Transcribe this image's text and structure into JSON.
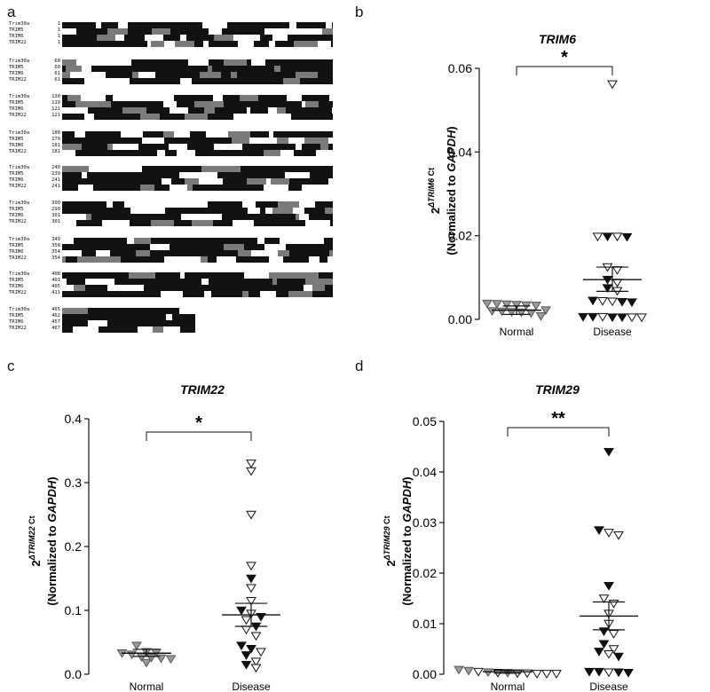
{
  "panels": {
    "a": "a",
    "b": "b",
    "c": "c",
    "d": "d"
  },
  "alignment": {
    "sequences": [
      "Trim30a",
      "TRIM5",
      "TRIM6",
      "TRIM22"
    ],
    "blocks": [
      {
        "starts": [
          "1",
          "1",
          "1",
          "1"
        ]
      },
      {
        "starts": [
          "60",
          "60",
          "61",
          "61"
        ]
      },
      {
        "starts": [
          "130",
          "119",
          "121",
          "121"
        ]
      },
      {
        "starts": [
          "180",
          "179",
          "181",
          "181"
        ]
      },
      {
        "starts": [
          "240",
          "239",
          "241",
          "241"
        ]
      },
      {
        "starts": [
          "300",
          "299",
          "301",
          "301"
        ]
      },
      {
        "starts": [
          "349",
          "358",
          "354",
          "354"
        ]
      },
      {
        "starts": [
          "408",
          "403",
          "405",
          "411"
        ]
      },
      {
        "starts": [
          "465",
          "462",
          "457",
          "467"
        ]
      }
    ]
  },
  "chart_data": [
    {
      "type": "scatter",
      "title": "TRIM6",
      "ylabel_main": "2",
      "ylabel_sup_prefix": "ΔTRIM6",
      "ylabel_sup_suffix": " Ct",
      "ylabel_line2_pre": "(Normalized to ",
      "ylabel_line2_gene": "GAPDH",
      "ylabel_line2_post": ")",
      "categories": [
        "Normal",
        "Disease"
      ],
      "ylim": [
        0,
        0.06
      ],
      "yticks": [
        "0.00",
        "0.02",
        "0.04",
        "0.06"
      ],
      "significance": "*",
      "groups": [
        {
          "name": "Normal",
          "mean": 0.0022,
          "sem": [
            0.0012,
            0.0032
          ],
          "points": [
            {
              "y": 0.0035,
              "style": "gray"
            },
            {
              "y": 0.0038,
              "style": "gray"
            },
            {
              "y": 0.0037,
              "style": "gray"
            },
            {
              "y": 0.0036,
              "style": "gray"
            },
            {
              "y": 0.0034,
              "style": "gray"
            },
            {
              "y": 0.0033,
              "style": "gray"
            },
            {
              "y": 0.0022,
              "style": "gray"
            },
            {
              "y": 0.002,
              "style": "gray"
            },
            {
              "y": 0.0019,
              "style": "gray"
            },
            {
              "y": 0.0018,
              "style": "gray"
            },
            {
              "y": 0.0017,
              "style": "gray"
            },
            {
              "y": 0.0015,
              "style": "gray"
            },
            {
              "y": 0.0008,
              "style": "gray"
            }
          ]
        },
        {
          "name": "Disease",
          "mean": 0.0095,
          "sem": [
            0.0067,
            0.0125
          ],
          "points": [
            {
              "y": 0.0562,
              "style": "open"
            },
            {
              "y": 0.0198,
              "style": "open"
            },
            {
              "y": 0.0198,
              "style": "filled"
            },
            {
              "y": 0.0197,
              "style": "filled"
            },
            {
              "y": 0.0198,
              "style": "open"
            },
            {
              "y": 0.0125,
              "style": "open"
            },
            {
              "y": 0.0118,
              "style": "open"
            },
            {
              "y": 0.0095,
              "style": "filled"
            },
            {
              "y": 0.0088,
              "style": "open"
            },
            {
              "y": 0.0075,
              "style": "filled"
            },
            {
              "y": 0.0068,
              "style": "open"
            },
            {
              "y": 0.0045,
              "style": "filled"
            },
            {
              "y": 0.0044,
              "style": "open"
            },
            {
              "y": 0.0042,
              "style": "filled"
            },
            {
              "y": 0.0043,
              "style": "open"
            },
            {
              "y": 0.0041,
              "style": "filled"
            },
            {
              "y": 0.0006,
              "style": "filled"
            },
            {
              "y": 0.0005,
              "style": "filled"
            },
            {
              "y": 0.0005,
              "style": "filled"
            },
            {
              "y": 0.0006,
              "style": "filled"
            },
            {
              "y": 0.0005,
              "style": "open"
            },
            {
              "y": 0.0006,
              "style": "open"
            },
            {
              "y": 0.0005,
              "style": "open"
            }
          ]
        }
      ]
    },
    {
      "type": "scatter",
      "title": "TRIM22",
      "ylabel_main": "2",
      "ylabel_sup_prefix": "ΔTRIM22",
      "ylabel_sup_suffix": " Ct",
      "ylabel_line2_pre": "(Normalized to ",
      "ylabel_line2_gene": "GAPDH",
      "ylabel_line2_post": ")",
      "categories": [
        "Normal",
        "Disease"
      ],
      "ylim": [
        0,
        0.4
      ],
      "yticks": [
        "0.0",
        "0.1",
        "0.2",
        "0.3",
        "0.4"
      ],
      "significance": "*",
      "groups": [
        {
          "name": "Normal",
          "mean": 0.033,
          "sem": [
            0.028,
            0.039
          ],
          "points": [
            {
              "y": 0.045,
              "style": "gray"
            },
            {
              "y": 0.035,
              "style": "gray"
            },
            {
              "y": 0.034,
              "style": "gray"
            },
            {
              "y": 0.033,
              "style": "gray"
            },
            {
              "y": 0.031,
              "style": "gray"
            },
            {
              "y": 0.027,
              "style": "gray"
            },
            {
              "y": 0.025,
              "style": "gray"
            },
            {
              "y": 0.026,
              "style": "gray"
            },
            {
              "y": 0.024,
              "style": "gray"
            },
            {
              "y": 0.018,
              "style": "gray"
            }
          ]
        },
        {
          "name": "Disease",
          "mean": 0.093,
          "sem": [
            0.075,
            0.111
          ],
          "points": [
            {
              "y": 0.33,
              "style": "open"
            },
            {
              "y": 0.318,
              "style": "open"
            },
            {
              "y": 0.25,
              "style": "open"
            },
            {
              "y": 0.17,
              "style": "open"
            },
            {
              "y": 0.15,
              "style": "filled"
            },
            {
              "y": 0.135,
              "style": "open"
            },
            {
              "y": 0.115,
              "style": "open"
            },
            {
              "y": 0.1,
              "style": "filled"
            },
            {
              "y": 0.095,
              "style": "open"
            },
            {
              "y": 0.09,
              "style": "filled"
            },
            {
              "y": 0.085,
              "style": "open"
            },
            {
              "y": 0.075,
              "style": "filled"
            },
            {
              "y": 0.07,
              "style": "open"
            },
            {
              "y": 0.06,
              "style": "open"
            },
            {
              "y": 0.045,
              "style": "filled"
            },
            {
              "y": 0.04,
              "style": "filled"
            },
            {
              "y": 0.035,
              "style": "open"
            },
            {
              "y": 0.03,
              "style": "filled"
            },
            {
              "y": 0.02,
              "style": "open"
            },
            {
              "y": 0.015,
              "style": "filled"
            },
            {
              "y": 0.01,
              "style": "open"
            }
          ]
        }
      ]
    },
    {
      "type": "scatter",
      "title": "TRIM29",
      "ylabel_main": "2",
      "ylabel_sup_prefix": "ΔTRIM29",
      "ylabel_sup_suffix": " Ct",
      "ylabel_line2_pre": "(Normalized to ",
      "ylabel_line2_gene": "GAPDH",
      "ylabel_line2_post": ")",
      "categories": [
        "Normal",
        "Disease"
      ],
      "ylim": [
        0,
        0.05
      ],
      "yticks": [
        "0.00",
        "0.01",
        "0.02",
        "0.03",
        "0.04",
        "0.05"
      ],
      "significance": "**",
      "groups": [
        {
          "name": "Normal",
          "mean": 0.0005,
          "sem": [
            0.0002,
            0.0008
          ],
          "points": [
            {
              "y": 0.0009,
              "style": "gray"
            },
            {
              "y": 0.0007,
              "style": "gray"
            },
            {
              "y": 0.0005,
              "style": "open"
            },
            {
              "y": 0.0004,
              "style": "gray"
            },
            {
              "y": 0.0003,
              "style": "open"
            },
            {
              "y": 0.0003,
              "style": "gray"
            },
            {
              "y": 0.0002,
              "style": "open"
            },
            {
              "y": 0.0002,
              "style": "open"
            },
            {
              "y": 0.0001,
              "style": "open"
            },
            {
              "y": 0.0001,
              "style": "open"
            },
            {
              "y": 0.0001,
              "style": "open"
            }
          ]
        },
        {
          "name": "Disease",
          "mean": 0.0115,
          "sem": [
            0.0088,
            0.0143
          ],
          "points": [
            {
              "y": 0.044,
              "style": "filled"
            },
            {
              "y": 0.0285,
              "style": "filled"
            },
            {
              "y": 0.028,
              "style": "open"
            },
            {
              "y": 0.0275,
              "style": "open"
            },
            {
              "y": 0.0175,
              "style": "filled"
            },
            {
              "y": 0.015,
              "style": "open"
            },
            {
              "y": 0.014,
              "style": "open"
            },
            {
              "y": 0.012,
              "style": "open"
            },
            {
              "y": 0.01,
              "style": "open"
            },
            {
              "y": 0.0085,
              "style": "filled"
            },
            {
              "y": 0.008,
              "style": "open"
            },
            {
              "y": 0.006,
              "style": "filled"
            },
            {
              "y": 0.005,
              "style": "open"
            },
            {
              "y": 0.0045,
              "style": "filled"
            },
            {
              "y": 0.004,
              "style": "open"
            },
            {
              "y": 0.0035,
              "style": "filled"
            },
            {
              "y": 0.0005,
              "style": "filled"
            },
            {
              "y": 0.0005,
              "style": "filled"
            },
            {
              "y": 0.0004,
              "style": "open"
            },
            {
              "y": 0.0004,
              "style": "filled"
            },
            {
              "y": 0.0003,
              "style": "filled"
            }
          ]
        }
      ]
    }
  ]
}
